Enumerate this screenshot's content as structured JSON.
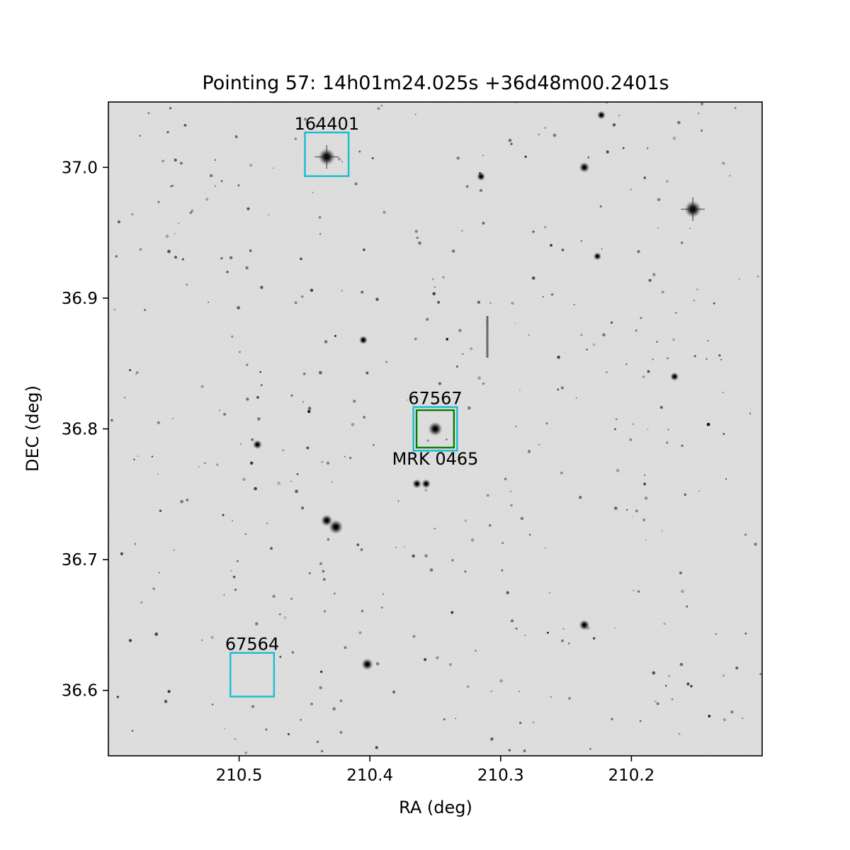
{
  "figure": {
    "title": "Pointing 57: 14h01m24.025s +36d48m00.2401s",
    "xlabel": "RA (deg)",
    "ylabel": "DEC (deg)",
    "xlim": [
      210.6,
      210.1
    ],
    "ylim": [
      36.55,
      37.05
    ],
    "xticks": [
      {
        "value": 210.5,
        "label": "210.5"
      },
      {
        "value": 210.4,
        "label": "210.4"
      },
      {
        "value": 210.3,
        "label": "210.3"
      },
      {
        "value": 210.2,
        "label": "210.2"
      }
    ],
    "yticks": [
      {
        "value": 36.6,
        "label": "36.6"
      },
      {
        "value": 36.7,
        "label": "36.7"
      },
      {
        "value": 36.8,
        "label": "36.8"
      },
      {
        "value": 36.9,
        "label": "36.9"
      },
      {
        "value": 37.0,
        "label": "37.0"
      }
    ],
    "image_background": "#e2e2e2",
    "frame_color": "#000000"
  },
  "markers": [
    {
      "id": "164401",
      "label": "164401",
      "ra": 210.433,
      "dec": 37.01,
      "half_size": 0.0167,
      "color": "#17becf",
      "label_position": "above"
    },
    {
      "id": "67567",
      "label": "67567",
      "ra": 210.35,
      "dec": 36.8,
      "half_size": 0.0167,
      "color": "#17becf",
      "label_position": "above"
    },
    {
      "id": "67564",
      "label": "67564",
      "ra": 210.49,
      "dec": 36.612,
      "half_size": 0.0167,
      "color": "#17becf",
      "label_position": "above"
    },
    {
      "id": "mrk0465",
      "label": "MRK 0465",
      "ra": 210.35,
      "dec": 36.8,
      "half_size": 0.0143,
      "color": "#008000",
      "label_position": "below"
    }
  ],
  "bright_sources": [
    {
      "ra": 210.433,
      "dec": 37.008,
      "mag": 1.0
    },
    {
      "ra": 210.153,
      "dec": 36.968,
      "mag": 1.0
    },
    {
      "ra": 210.35,
      "dec": 36.8,
      "mag": 0.8
    },
    {
      "ra": 210.426,
      "dec": 36.725,
      "mag": 0.8
    },
    {
      "ra": 210.433,
      "dec": 36.73,
      "mag": 0.6
    },
    {
      "ra": 210.402,
      "dec": 36.62,
      "mag": 0.6
    },
    {
      "ra": 210.236,
      "dec": 36.65,
      "mag": 0.5
    },
    {
      "ra": 210.236,
      "dec": 37.0,
      "mag": 0.5
    },
    {
      "ra": 210.357,
      "dec": 36.758,
      "mag": 0.4
    },
    {
      "ra": 210.364,
      "dec": 36.758,
      "mag": 0.4
    },
    {
      "ra": 210.486,
      "dec": 36.788,
      "mag": 0.4
    },
    {
      "ra": 210.167,
      "dec": 36.84,
      "mag": 0.35
    },
    {
      "ra": 210.405,
      "dec": 36.868,
      "mag": 0.35
    },
    {
      "ra": 210.223,
      "dec": 37.04,
      "mag": 0.35
    },
    {
      "ra": 210.315,
      "dec": 36.993,
      "mag": 0.35
    },
    {
      "ra": 210.226,
      "dec": 36.932,
      "mag": 0.3
    }
  ]
}
